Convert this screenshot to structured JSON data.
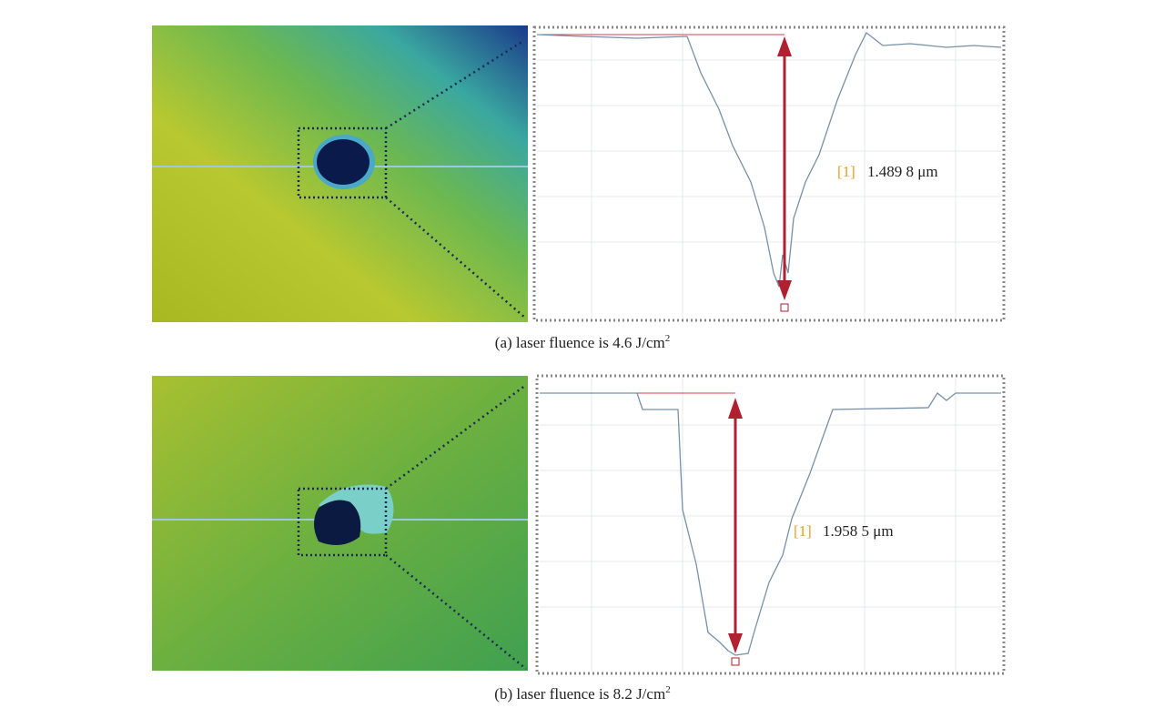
{
  "panels": [
    {
      "marker": "[1]",
      "measurement": "1.489 8 μm",
      "caption": "(a) laser fluence is 4.6 J/cm",
      "caption_sup": "2"
    },
    {
      "marker": "[1]",
      "measurement": "1.958 5 μm",
      "caption": "(b) laser fluence is 8.2 J/cm",
      "caption_sup": "2"
    }
  ]
}
